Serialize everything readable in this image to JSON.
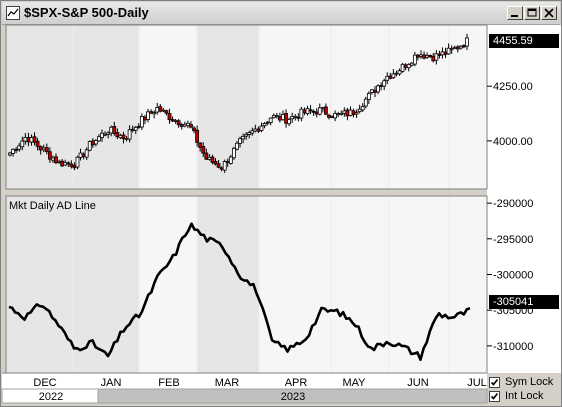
{
  "window": {
    "title": "$SPX-S&P 500-Daily",
    "controls": [
      "minimize",
      "maximize",
      "close"
    ]
  },
  "upper_panel": {
    "last_value": "4455.59"
  },
  "lower_panel": {
    "label": "Mkt Daily AD Line",
    "last_value": "-305041"
  },
  "footer": {
    "sym_lock_label": "Sym Lock",
    "int_lock_label": "Int Lock",
    "sym_lock_checked": true,
    "int_lock_checked": true
  },
  "chart_data": [
    {
      "type": "candlestick",
      "title": "$SPX-S&P 500-Daily",
      "ylim": [
        3780,
        4530
      ],
      "y_ticks": [
        4000,
        4250
      ],
      "y_tick_labels": [
        "4000.00",
        "4250.00"
      ],
      "last_value": 4455.59,
      "x_months": [
        "DEC",
        "JAN",
        "FEB",
        "MAR",
        "APR",
        "MAY",
        "JUN",
        "JUL"
      ],
      "x_years": [
        "2022",
        "2023"
      ],
      "shaded_periods": [
        "DEC-JAN",
        "FEB-MAR"
      ],
      "up_color": "#ffffff",
      "down_color": "#c00000",
      "weekly_close": [
        3945,
        4020,
        3960,
        3900,
        3895,
        3990,
        4050,
        4015,
        4090,
        4150,
        4100,
        4070,
        3920,
        3880,
        3985,
        4050,
        4110,
        4100,
        4130,
        4140,
        4115,
        4130,
        4205,
        4290,
        4335,
        4400,
        4385,
        4410,
        4455.59
      ]
    },
    {
      "type": "line",
      "title": "Mkt Daily AD Line",
      "ylim": [
        -313800,
        -289000
      ],
      "y_ticks": [
        -290000,
        -295000,
        -300000,
        -305000,
        -310000
      ],
      "y_tick_labels": [
        "-290000",
        "-295000",
        "-300000",
        "-305000",
        "-310000"
      ],
      "last_value": -305041,
      "weekly_values": [
        -304500,
        -306000,
        -304000,
        -307000,
        -310500,
        -309500,
        -311500,
        -307500,
        -305500,
        -300500,
        -297500,
        -293000,
        -295000,
        -296000,
        -300000,
        -302000,
        -309500,
        -310500,
        -309000,
        -305000,
        -305200,
        -306800,
        -310500,
        -309300,
        -310200,
        -311500,
        -305500,
        -306000,
        -305041
      ]
    }
  ]
}
